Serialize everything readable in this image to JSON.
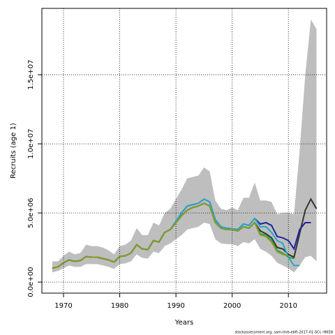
{
  "chart_data": {
    "type": "line",
    "x_label": "Years",
    "y_label": "Recruits (age 1)",
    "note": "stockassessment.org, sam-tmb-ebft-2017-01-SCI, r8658",
    "xlim": [
      1966.15,
      2016.8
    ],
    "ylim": [
      -800000.0,
      19800000.0
    ],
    "xticks": [
      1970,
      1980,
      1990,
      2000,
      2010
    ],
    "yticks": [
      {
        "value": 0,
        "label": "0.0e+00"
      },
      {
        "value": 5000000.0,
        "label": "5.0e+06"
      },
      {
        "value": 10000000.0,
        "label": "1.0e+07"
      },
      {
        "value": 15000000.0,
        "label": "1.5e+07"
      }
    ],
    "grid": true,
    "x": [
      1968,
      1969,
      1970,
      1971,
      1972,
      1973,
      1974,
      1975,
      1976,
      1977,
      1978,
      1979,
      1980,
      1981,
      1982,
      1983,
      1984,
      1985,
      1986,
      1987,
      1988,
      1989,
      1990,
      1991,
      1992,
      1993,
      1994,
      1995,
      1996,
      1997,
      1998,
      1999,
      2000,
      2001,
      2002,
      2003,
      2004,
      2005,
      2006,
      2007,
      2008,
      2009,
      2010,
      2011,
      2012,
      2013,
      2014,
      2015
    ],
    "band": {
      "color": "#bebebe",
      "upper": [
        1500000.0,
        1500000.0,
        1900000.0,
        2200000.0,
        2000000.0,
        2100000.0,
        2700000.0,
        2600000.0,
        2600000.0,
        2500000.0,
        2300000.0,
        2000000.0,
        2600000.0,
        2700000.0,
        3000000.0,
        3900000.0,
        3400000.0,
        3400000.0,
        4300000.0,
        4100000.0,
        5000000.0,
        5300000.0,
        6000000.0,
        6700000.0,
        7500000.0,
        7600000.0,
        7700000.0,
        8300000.0,
        8000000.0,
        5900000.0,
        5300000.0,
        5200000.0,
        5400000.0,
        5200000.0,
        6100000.0,
        6100000.0,
        7200000.0,
        5900000.0,
        5900000.0,
        5800000.0,
        4900000.0,
        5000000.0,
        5000000.0,
        4900000.0,
        9500000.0,
        15000000.0,
        19000000.0,
        18300000.0
      ],
      "lower": [
        700000.0,
        800000.0,
        1000000.0,
        1200000.0,
        1100000.0,
        1100000.0,
        1300000.0,
        1300000.0,
        1300000.0,
        1200000.0,
        1100000.0,
        950000.0,
        1300000.0,
        1350000.0,
        1500000.0,
        2000000.0,
        1750000.0,
        1700000.0,
        2200000.0,
        2100000.0,
        2600000.0,
        2800000.0,
        3100000.0,
        3400000.0,
        3800000.0,
        3900000.0,
        4000000.0,
        4300000.0,
        4200000.0,
        3100000.0,
        2800000.0,
        2750000.0,
        2750000.0,
        2600000.0,
        2900000.0,
        2800000.0,
        3100000.0,
        2400000.0,
        2200000.0,
        1900000.0,
        1400000.0,
        1200000.0,
        1000000.0,
        700000.0,
        1200000.0,
        1800000.0,
        1900000.0,
        1500000.0
      ]
    },
    "series": [
      {
        "color": "#333333",
        "values": [
          1000000.0,
          1100000.0,
          1400000.0,
          1600000.0,
          1500000.0,
          1550000.0,
          1850000.0,
          1800000.0,
          1800000.0,
          1700000.0,
          1600000.0,
          1450000.0,
          1850000.0,
          1900000.0,
          2100000.0,
          2700000.0,
          2400000.0,
          2350000.0,
          3000000.0,
          2900000.0,
          3600000.0,
          3800000.0,
          4300000.0,
          4800000.0,
          5200000.0,
          5400000.0,
          5500000.0,
          5700000.0,
          5500000.0,
          4300000.0,
          3900000.0,
          3800000.0,
          3800000.0,
          3700000.0,
          4000000.0,
          3900000.0,
          4300000.0,
          3700000.0,
          3500000.0,
          3200000.0,
          2500000.0,
          2400000.0,
          2000000.0,
          1800000.0,
          3500000.0,
          5200000.0,
          6000000.0,
          5300000.0
        ]
      },
      {
        "color": "#2020a0",
        "values": [
          1000000.0,
          1100000.0,
          1400000.0,
          1600000.0,
          1500000.0,
          1550000.0,
          1850000.0,
          1800000.0,
          1800000.0,
          1700000.0,
          1600000.0,
          1450000.0,
          1850000.0,
          1900000.0,
          2100000.0,
          2700000.0,
          2400000.0,
          2350000.0,
          3000000.0,
          2900000.0,
          3600000.0,
          3800000.0,
          4400000.0,
          5000000.0,
          5500000.0,
          5600000.0,
          5700000.0,
          6000000.0,
          5800000.0,
          4500000.0,
          4000000.0,
          3900000.0,
          3850000.0,
          3800000.0,
          4200000.0,
          4100000.0,
          4600000.0,
          4200000.0,
          4300000.0,
          4100000.0,
          3300000.0,
          3200000.0,
          3000000.0,
          2400000.0,
          3800000.0,
          4300000.0,
          4300000.0,
          null
        ]
      },
      {
        "color": "#22aacc",
        "values": [
          1000000.0,
          1100000.0,
          1400000.0,
          1600000.0,
          1500000.0,
          1550000.0,
          1850000.0,
          1800000.0,
          1800000.0,
          1700000.0,
          1600000.0,
          1450000.0,
          1850000.0,
          1900000.0,
          2100000.0,
          2700000.0,
          2400000.0,
          2350000.0,
          3000000.0,
          2900000.0,
          3600000.0,
          3800000.0,
          4400000.0,
          5000000.0,
          5500000.0,
          5600000.0,
          5700000.0,
          6000000.0,
          5800000.0,
          4500000.0,
          4000000.0,
          3900000.0,
          3850000.0,
          3800000.0,
          4200000.0,
          4100000.0,
          4600000.0,
          4000000.0,
          4000000.0,
          3600000.0,
          3000000.0,
          2800000.0,
          1800000.0,
          1200000.0,
          1200000.0,
          null,
          null,
          null
        ]
      },
      {
        "color": "#22aa55",
        "values": [
          1000000.0,
          1100000.0,
          1400000.0,
          1600000.0,
          1500000.0,
          1550000.0,
          1850000.0,
          1800000.0,
          1800000.0,
          1700000.0,
          1600000.0,
          1450000.0,
          1850000.0,
          1900000.0,
          2100000.0,
          2700000.0,
          2400000.0,
          2350000.0,
          3000000.0,
          2900000.0,
          3600000.0,
          3800000.0,
          4300000.0,
          4800000.0,
          5200000.0,
          5400000.0,
          5500000.0,
          5700000.0,
          5500000.0,
          4300000.0,
          3900000.0,
          3800000.0,
          3800000.0,
          3700000.0,
          4000000.0,
          3900000.0,
          4300000.0,
          3500000.0,
          3400000.0,
          3000000.0,
          2300000.0,
          2100000.0,
          1800000.0,
          1700000.0,
          null,
          null,
          null,
          null
        ]
      },
      {
        "color": "#889922",
        "values": [
          1000000.0,
          1100000.0,
          1400000.0,
          1600000.0,
          1500000.0,
          1550000.0,
          1850000.0,
          1800000.0,
          1800000.0,
          1700000.0,
          1600000.0,
          1450000.0,
          1850000.0,
          1900000.0,
          2100000.0,
          2700000.0,
          2400000.0,
          2350000.0,
          3000000.0,
          2900000.0,
          3600000.0,
          3800000.0,
          4300000.0,
          4800000.0,
          5200000.0,
          5400000.0,
          5500000.0,
          5700000.0,
          5500000.0,
          4300000.0,
          3900000.0,
          3800000.0,
          3800000.0,
          3700000.0,
          4000000.0,
          3900000.0,
          4300000.0,
          3400000.0,
          3300000.0,
          2900000.0,
          2200000.0,
          2000000.0,
          1900000.0,
          null,
          null,
          null,
          null,
          null
        ]
      }
    ]
  }
}
